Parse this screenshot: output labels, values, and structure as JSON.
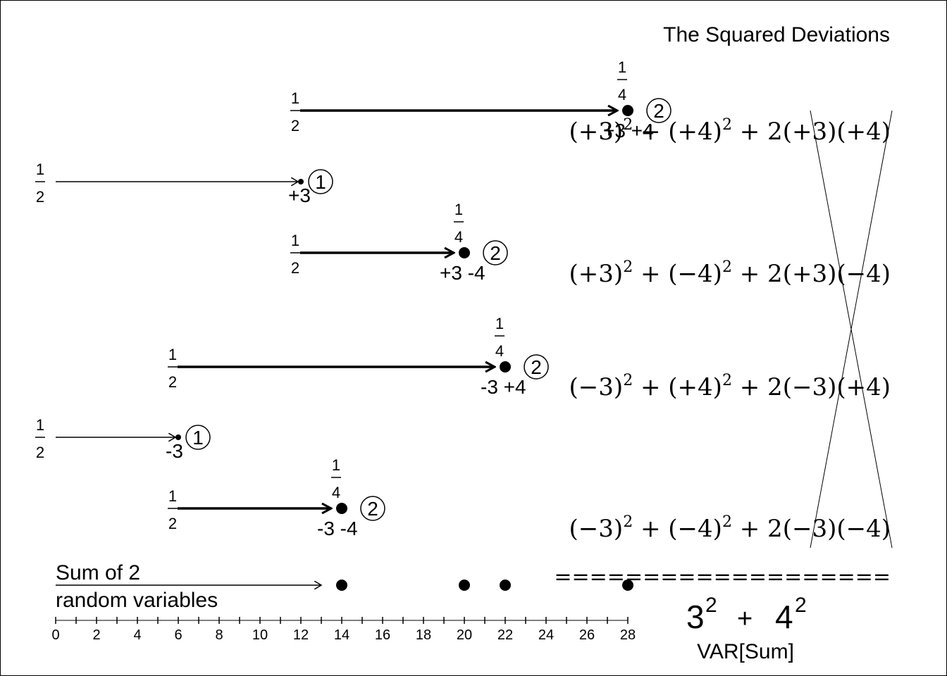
{
  "title": "The Squared Deviations",
  "branches": [
    {
      "prob": {
        "num": "1",
        "den": "2"
      },
      "marker": "1",
      "label": "+3",
      "end": 12
    },
    {
      "prob": {
        "num": "1",
        "den": "2"
      },
      "marker": "1",
      "label": "-3",
      "end": 6
    }
  ],
  "outcomes": [
    {
      "first_prob": {
        "num": "1",
        "den": "2"
      },
      "second_prob": {
        "num": "1",
        "den": "4"
      },
      "marker": "2",
      "label": "+3 +4",
      "sum": 28,
      "start": 12,
      "formula": {
        "a": "+3",
        "b": "+4",
        "c1": "+3",
        "c2": "+4"
      }
    },
    {
      "first_prob": {
        "num": "1",
        "den": "2"
      },
      "second_prob": {
        "num": "1",
        "den": "4"
      },
      "marker": "2",
      "label": "+3 -4",
      "sum": 20,
      "start": 12,
      "formula": {
        "a": "+3",
        "b": "−4",
        "c1": "+3",
        "c2": "−4"
      }
    },
    {
      "first_prob": {
        "num": "1",
        "den": "2"
      },
      "second_prob": {
        "num": "1",
        "den": "4"
      },
      "marker": "2",
      "label": "-3 +4",
      "sum": 22,
      "start": 6,
      "formula": {
        "a": "−3",
        "b": "+4",
        "c1": "−3",
        "c2": "+4"
      }
    },
    {
      "first_prob": {
        "num": "1",
        "den": "2"
      },
      "second_prob": {
        "num": "1",
        "den": "4"
      },
      "marker": "2",
      "label": "-3 -4",
      "sum": 14,
      "start": 6,
      "formula": {
        "a": "−3",
        "b": "−4",
        "c1": "−3",
        "c2": "−4"
      }
    }
  ],
  "sum_label": {
    "line1": "Sum of 2",
    "line2": "random variables"
  },
  "sum_points": [
    14,
    20,
    22,
    28
  ],
  "axis": {
    "min": 0,
    "max": 28,
    "label_step": 2,
    "tick_labels": [
      "0",
      "2",
      "4",
      "6",
      "8",
      "10",
      "12",
      "14",
      "16",
      "18",
      "20",
      "22",
      "24",
      "26",
      "28"
    ]
  },
  "separator": "===================",
  "result": {
    "base1": "3",
    "exp1": "2",
    "plus": "+",
    "base2": "4",
    "exp2": "2"
  },
  "result_label": "VAR[Sum]"
}
